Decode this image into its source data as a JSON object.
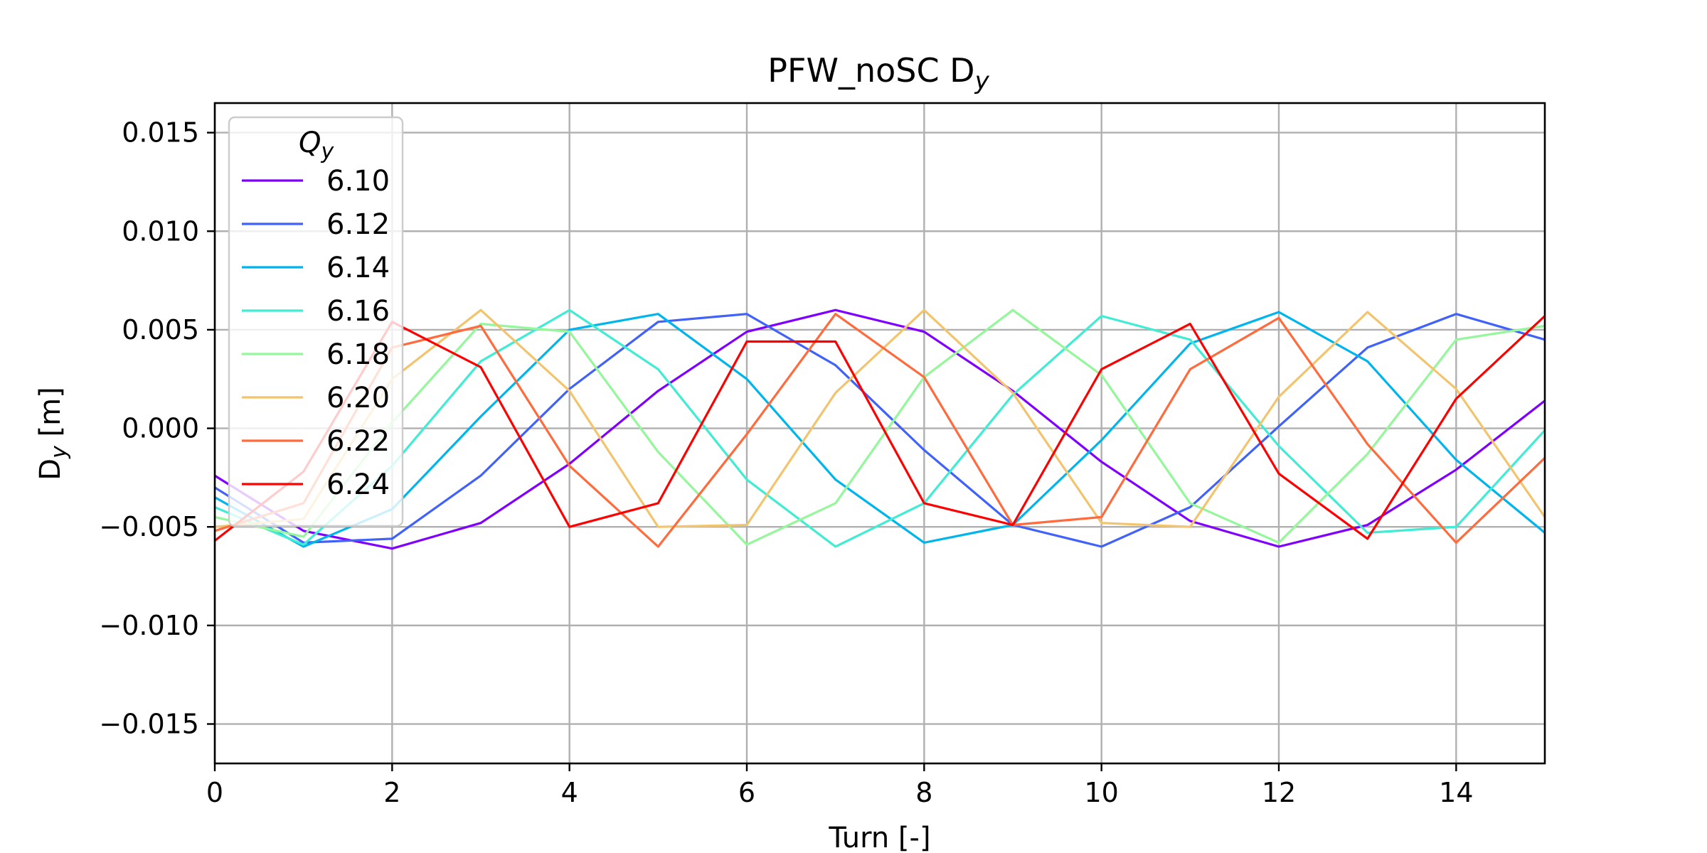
{
  "chart_data": {
    "type": "line",
    "title": {
      "main": "PFW_noSC D",
      "sub": "y"
    },
    "xlabel": "Turn [-]",
    "ylabel": {
      "main": "D",
      "sub": "y",
      "suffix": " [m]"
    },
    "xlim": [
      0,
      15
    ],
    "ylim": [
      -0.017,
      0.0165
    ],
    "xticks": [
      0,
      2,
      4,
      6,
      8,
      10,
      12,
      14
    ],
    "yticks": [
      {
        "value": -0.015,
        "label": "−0.015"
      },
      {
        "value": -0.01,
        "label": "−0.010"
      },
      {
        "value": -0.005,
        "label": "−0.005"
      },
      {
        "value": 0.0,
        "label": "0.000"
      },
      {
        "value": 0.005,
        "label": "0.005"
      },
      {
        "value": 0.01,
        "label": "0.010"
      },
      {
        "value": 0.015,
        "label": "0.015"
      }
    ],
    "grid": true,
    "legend": {
      "title": "Q",
      "title_sub": "y",
      "placement": "upper-left"
    },
    "x": [
      0,
      1,
      2,
      3,
      4,
      5,
      6,
      7,
      8,
      9,
      10,
      11,
      12,
      13,
      14,
      15
    ],
    "series": [
      {
        "name": "6.10",
        "color": "#8000ff",
        "values": [
          -0.0024,
          -0.0052,
          -0.0061,
          -0.0048,
          -0.0018,
          0.0019,
          0.0049,
          0.006,
          0.0049,
          0.0019,
          -0.0017,
          -0.0047,
          -0.006,
          -0.0049,
          -0.0021,
          0.0014
        ]
      },
      {
        "name": "6.12",
        "color": "#4062fa",
        "values": [
          -0.003,
          -0.0058,
          -0.0056,
          -0.0024,
          0.002,
          0.0054,
          0.0058,
          0.0032,
          -0.0011,
          -0.0049,
          -0.006,
          -0.004,
          0.0001,
          0.0041,
          0.0058,
          0.0045
        ]
      },
      {
        "name": "6.14",
        "color": "#00b5eb",
        "values": [
          -0.0035,
          -0.006,
          -0.0041,
          0.0006,
          0.005,
          0.0058,
          0.0025,
          -0.0026,
          -0.0058,
          -0.0049,
          -0.0006,
          0.0043,
          0.0059,
          0.0034,
          -0.0016,
          -0.0053
        ]
      },
      {
        "name": "6.16",
        "color": "#40ecd4",
        "values": [
          -0.004,
          -0.0059,
          -0.0019,
          0.0034,
          0.006,
          0.003,
          -0.0026,
          -0.006,
          -0.0038,
          0.0017,
          0.0057,
          0.0045,
          -0.0009,
          -0.0053,
          -0.005,
          -0.0001
        ]
      },
      {
        "name": "6.18",
        "color": "#95f79b",
        "values": [
          -0.0045,
          -0.0055,
          0.0003,
          0.0053,
          0.0049,
          -0.0012,
          -0.0059,
          -0.0038,
          0.0026,
          0.006,
          0.0027,
          -0.0038,
          -0.0058,
          -0.0013,
          0.0045,
          0.0052
        ]
      },
      {
        "name": "6.20",
        "color": "#f2c46e",
        "values": [
          -0.005,
          -0.0046,
          0.0025,
          0.006,
          0.0019,
          -0.005,
          -0.0049,
          0.0018,
          0.006,
          0.0018,
          -0.0048,
          -0.005,
          0.0016,
          0.0059,
          0.002,
          -0.0045
        ]
      },
      {
        "name": "6.22",
        "color": "#ff6b3c",
        "values": [
          -0.0052,
          -0.0038,
          0.0041,
          0.0052,
          -0.0019,
          -0.006,
          -0.0003,
          0.0058,
          0.0026,
          -0.0049,
          -0.0045,
          0.003,
          0.0056,
          -0.0008,
          -0.0058,
          -0.0015
        ]
      },
      {
        "name": "6.24",
        "color": "#ff0000",
        "values": [
          -0.0057,
          -0.0022,
          0.0054,
          0.0031,
          -0.005,
          -0.0038,
          0.0044,
          0.0044,
          -0.0038,
          -0.0049,
          0.003,
          0.0053,
          -0.0023,
          -0.0056,
          0.0015,
          0.0057
        ]
      }
    ]
  }
}
